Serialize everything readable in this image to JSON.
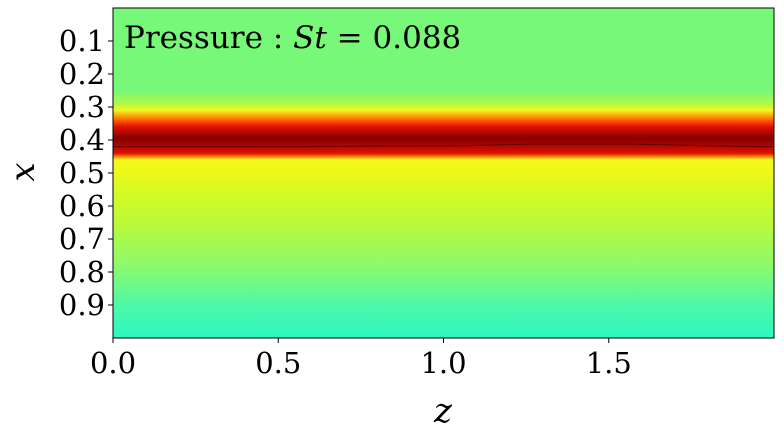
{
  "chart_data": {
    "type": "heatmap",
    "title": "Pressure : St = 0.088",
    "title_parts": {
      "prefix": "Pressure : ",
      "symbol": "St",
      "equals": " = ",
      "value": "0.088"
    },
    "xlabel": "z",
    "ylabel": "x",
    "xlim": [
      0.0,
      2.0
    ],
    "ylim": [
      1.0,
      0.0
    ],
    "y_inverted": true,
    "xticks": [
      0.0,
      0.5,
      1.0,
      1.5
    ],
    "xtick_labels": [
      "0.0",
      "0.5",
      "1.0",
      "1.5"
    ],
    "yticks": [
      0.1,
      0.2,
      0.3,
      0.4,
      0.5,
      0.6,
      0.7,
      0.8,
      0.9
    ],
    "ytick_labels": [
      "0.1",
      "0.2",
      "0.3",
      "0.4",
      "0.5",
      "0.6",
      "0.7",
      "0.8",
      "0.9"
    ],
    "grid": false,
    "colormap": "jet-like (teal → green → yellow → red → dark red)",
    "colors": {
      "teal": "#2cf8c2",
      "green": "#78f878",
      "yellow_green": "#c8fa2e",
      "yellow": "#f4f81e",
      "orange": "#ffb000",
      "red": "#e01000",
      "dark_red": "#8a0000"
    },
    "field_profile_along_x": {
      "x": [
        0.0,
        0.25,
        0.29,
        0.31,
        0.34,
        0.36,
        0.4,
        0.44,
        0.46,
        0.49,
        0.55,
        0.65,
        0.78,
        0.9,
        1.0
      ],
      "color": [
        "#78f878",
        "#78f878",
        "#b0f848",
        "#f4f81e",
        "#ff6000",
        "#e01000",
        "#8a0000",
        "#e01000",
        "#f4f81e",
        "#f0f818",
        "#d8fa22",
        "#bcfa38",
        "#8cfa6c",
        "#4ef8a8",
        "#2cf8c2"
      ]
    },
    "band_center_x_vs_z": {
      "z": [
        0.0,
        0.5,
        1.0,
        1.3,
        1.5,
        2.0
      ],
      "x": [
        0.4,
        0.4,
        0.395,
        0.385,
        0.385,
        0.4
      ]
    },
    "band_lower_edge_x": 0.42
  }
}
